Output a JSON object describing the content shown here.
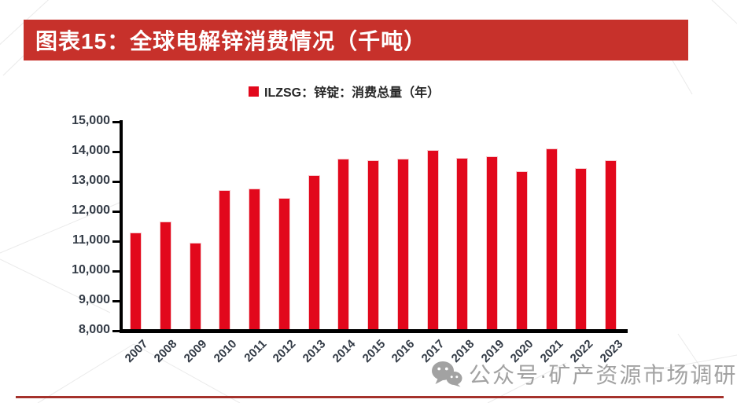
{
  "header": {
    "title": "图表15：全球电解锌消费情况（千吨）"
  },
  "legend": {
    "marker": "red-square",
    "label": "ILZSG：锌锭：消费总量（年）"
  },
  "watermark": {
    "icon": "wechat-icon",
    "text": "公众号·矿产资源市场调研"
  },
  "colors": {
    "title_bar_bg": "#C7312B",
    "title_text": "#FFFFFF",
    "bar_fill": "#E2081C",
    "bar_border": "#F6C9CD",
    "axis_line": "#000000",
    "tick_label": "#333B46",
    "legend_text": "#262626",
    "watermark_text": "#A2A2A2",
    "bottom_rule": "#A5322C"
  },
  "chart_data": {
    "type": "bar",
    "title": "图表15：全球电解锌消费情况（千吨）",
    "legend": [
      "ILZSG：锌锭：消费总量（年）"
    ],
    "legend_position": "top-center",
    "categories": [
      "2007",
      "2008",
      "2009",
      "2010",
      "2011",
      "2012",
      "2013",
      "2014",
      "2015",
      "2016",
      "2017",
      "2018",
      "2019",
      "2020",
      "2021",
      "2022",
      "2023"
    ],
    "values": [
      11250,
      11600,
      10900,
      12650,
      12700,
      12400,
      13150,
      13700,
      13650,
      13700,
      14000,
      13750,
      13800,
      13300,
      14050,
      13400,
      13650
    ],
    "unit": "千吨",
    "xlabel": "",
    "ylabel": "",
    "ylim": [
      8000,
      15000
    ],
    "ytick_step": 1000,
    "ytick_labels": [
      "15,000",
      "14,000",
      "13,000",
      "12,000",
      "11,000",
      "10,000",
      "9,000",
      "8,000"
    ],
    "grid": false
  }
}
